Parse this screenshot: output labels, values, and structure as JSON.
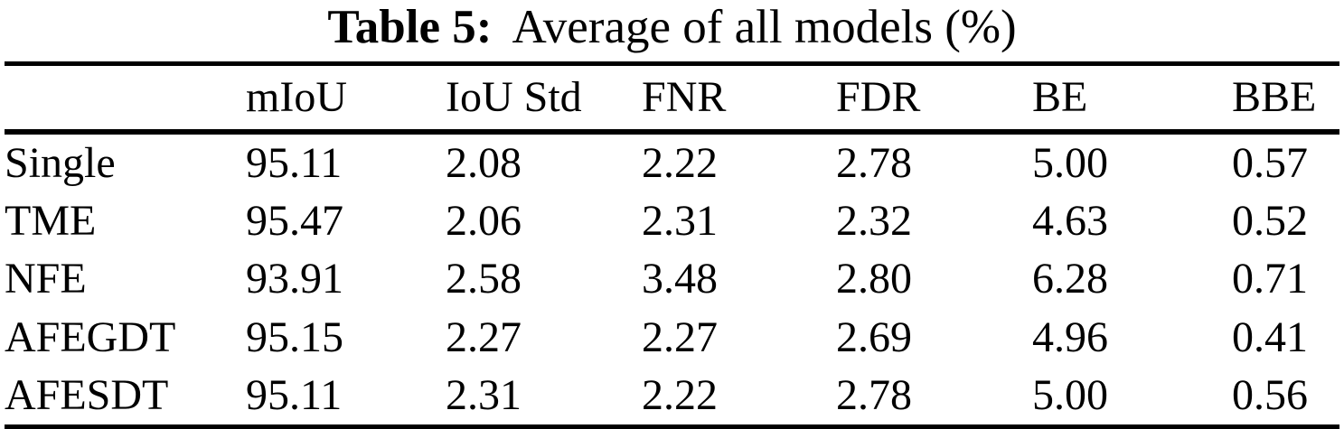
{
  "colors": {
    "background": "#ffffff",
    "text": "#000000",
    "rule": "#000000"
  },
  "caption": {
    "label": "Table 5:",
    "text": "Average of all models (%)"
  },
  "table": {
    "columns": [
      "",
      "mIoU",
      "IoU Std",
      "FNR",
      "FDR",
      "BE",
      "BBE"
    ],
    "rows": [
      {
        "label": "Single",
        "values": [
          "95.11",
          "2.08",
          "2.22",
          "2.78",
          "5.00",
          "0.57"
        ]
      },
      {
        "label": "TME",
        "values": [
          "95.47",
          "2.06",
          "2.31",
          "2.32",
          "4.63",
          "0.52"
        ]
      },
      {
        "label": "NFE",
        "values": [
          "93.91",
          "2.58",
          "3.48",
          "2.80",
          "6.28",
          "0.71"
        ]
      },
      {
        "label": "AFEGDT",
        "values": [
          "95.15",
          "2.27",
          "2.27",
          "2.69",
          "4.96",
          "0.41"
        ]
      },
      {
        "label": "AFESDT",
        "values": [
          "95.11",
          "2.31",
          "2.22",
          "2.78",
          "5.00",
          "0.56"
        ]
      }
    ]
  },
  "chart_data": {
    "type": "table",
    "title": "Table 5: Average of all models (%)",
    "columns": [
      "mIoU",
      "IoU Std",
      "FNR",
      "FDR",
      "BE",
      "BBE"
    ],
    "row_labels": [
      "Single",
      "TME",
      "NFE",
      "AFEGDT",
      "AFESDT"
    ],
    "values": [
      [
        95.11,
        2.08,
        2.22,
        2.78,
        5.0,
        0.57
      ],
      [
        95.47,
        2.06,
        2.31,
        2.32,
        4.63,
        0.52
      ],
      [
        93.91,
        2.58,
        3.48,
        2.8,
        6.28,
        0.71
      ],
      [
        95.15,
        2.27,
        2.27,
        2.69,
        4.96,
        0.41
      ],
      [
        95.11,
        2.31,
        2.22,
        2.78,
        5.0,
        0.56
      ]
    ]
  }
}
